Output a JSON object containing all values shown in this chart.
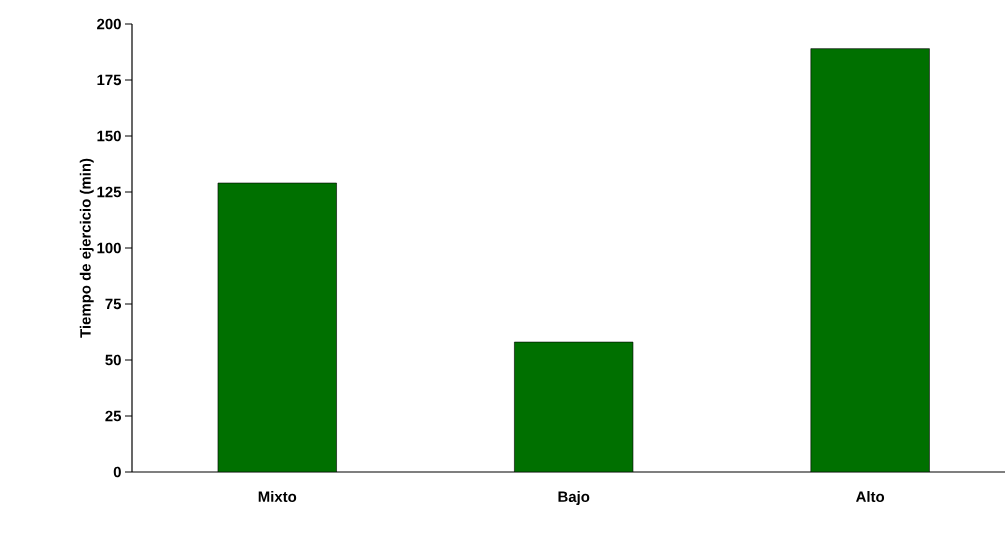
{
  "chart_data": {
    "type": "bar",
    "ylabel": "Tiempo de ejercicio (min)",
    "categories": [
      "Mixto",
      "Bajo",
      "Alto"
    ],
    "values": [
      129,
      58,
      189
    ],
    "color": "#007000",
    "ylim": [
      0,
      200
    ],
    "yticks": [
      0,
      25,
      50,
      75,
      100,
      125,
      150,
      175,
      200
    ],
    "grid": false
  }
}
